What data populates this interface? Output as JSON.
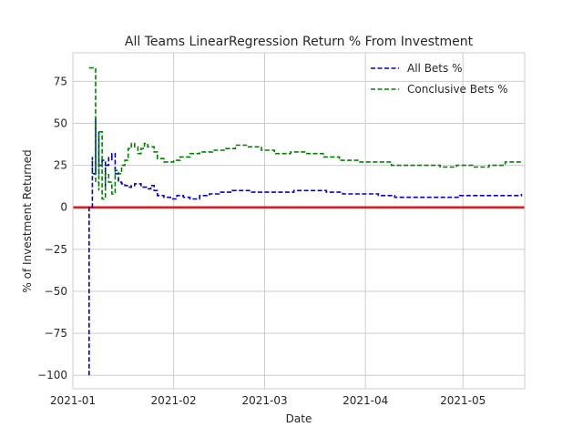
{
  "chart_data": {
    "type": "line",
    "title": "All Teams LinearRegression Return % From Investment",
    "xlabel": "Date",
    "ylabel": "% of Investment Returned",
    "xlim": [
      "2021-01-01",
      "2021-05-20"
    ],
    "ylim": [
      -108,
      92
    ],
    "x_ticks": [
      "2021-01",
      "2021-02",
      "2021-03",
      "2021-04",
      "2021-05"
    ],
    "y_ticks": [
      75,
      50,
      25,
      0,
      -25,
      -50,
      -75,
      -100
    ],
    "grid": true,
    "legend_position": "top-right",
    "reference_line": {
      "y": 0,
      "color": "#e31a1c"
    },
    "series": [
      {
        "name": "All Bets %",
        "color": "#0000cc",
        "style": "dashed",
        "points": [
          [
            "2021-01-06",
            -100
          ],
          [
            "2021-01-06",
            0
          ],
          [
            "2021-01-07",
            30
          ],
          [
            "2021-01-07",
            20
          ],
          [
            "2021-01-08",
            53
          ],
          [
            "2021-01-08",
            20
          ],
          [
            "2021-01-09",
            45
          ],
          [
            "2021-01-09",
            25
          ],
          [
            "2021-01-10",
            28
          ],
          [
            "2021-01-11",
            12
          ],
          [
            "2021-01-11",
            25
          ],
          [
            "2021-01-12",
            30
          ],
          [
            "2021-01-13",
            28
          ],
          [
            "2021-01-13",
            32
          ],
          [
            "2021-01-14",
            20
          ],
          [
            "2021-01-15",
            15
          ],
          [
            "2021-01-16",
            14
          ],
          [
            "2021-01-17",
            13
          ],
          [
            "2021-01-18",
            12
          ],
          [
            "2021-01-19",
            13
          ],
          [
            "2021-01-20",
            14
          ],
          [
            "2021-01-22",
            12
          ],
          [
            "2021-01-24",
            11
          ],
          [
            "2021-01-25",
            13
          ],
          [
            "2021-01-26",
            10
          ],
          [
            "2021-01-27",
            7
          ],
          [
            "2021-01-29",
            6
          ],
          [
            "2021-01-31",
            5
          ],
          [
            "2021-02-02",
            7
          ],
          [
            "2021-02-04",
            6
          ],
          [
            "2021-02-06",
            5
          ],
          [
            "2021-02-09",
            7
          ],
          [
            "2021-02-12",
            8
          ],
          [
            "2021-02-15",
            9
          ],
          [
            "2021-02-19",
            10
          ],
          [
            "2021-02-22",
            10
          ],
          [
            "2021-02-25",
            9
          ],
          [
            "2021-03-01",
            9
          ],
          [
            "2021-03-05",
            9
          ],
          [
            "2021-03-10",
            10
          ],
          [
            "2021-03-15",
            10
          ],
          [
            "2021-03-20",
            9
          ],
          [
            "2021-03-25",
            8
          ],
          [
            "2021-03-31",
            8
          ],
          [
            "2021-04-05",
            7
          ],
          [
            "2021-04-10",
            6
          ],
          [
            "2021-04-15",
            6
          ],
          [
            "2021-04-20",
            6
          ],
          [
            "2021-04-25",
            6
          ],
          [
            "2021-04-30",
            7
          ],
          [
            "2021-05-05",
            7
          ],
          [
            "2021-05-10",
            7
          ],
          [
            "2021-05-15",
            7
          ],
          [
            "2021-05-19",
            8
          ]
        ]
      },
      {
        "name": "Conclusive Bets %",
        "color": "#008000",
        "style": "dashed",
        "points": [
          [
            "2021-01-06",
            83
          ],
          [
            "2021-01-08",
            83
          ],
          [
            "2021-01-08",
            15
          ],
          [
            "2021-01-09",
            10
          ],
          [
            "2021-01-09",
            45
          ],
          [
            "2021-01-10",
            5
          ],
          [
            "2021-01-11",
            20
          ],
          [
            "2021-01-12",
            15
          ],
          [
            "2021-01-13",
            8
          ],
          [
            "2021-01-14",
            22
          ],
          [
            "2021-01-15",
            20
          ],
          [
            "2021-01-16",
            25
          ],
          [
            "2021-01-17",
            28
          ],
          [
            "2021-01-18",
            35
          ],
          [
            "2021-01-19",
            38
          ],
          [
            "2021-01-20",
            36
          ],
          [
            "2021-01-21",
            32
          ],
          [
            "2021-01-22",
            35
          ],
          [
            "2021-01-23",
            38
          ],
          [
            "2021-01-24",
            36
          ],
          [
            "2021-01-26",
            33
          ],
          [
            "2021-01-27",
            29
          ],
          [
            "2021-01-29",
            27
          ],
          [
            "2021-02-01",
            28
          ],
          [
            "2021-02-03",
            30
          ],
          [
            "2021-02-06",
            32
          ],
          [
            "2021-02-09",
            33
          ],
          [
            "2021-02-13",
            34
          ],
          [
            "2021-02-17",
            35
          ],
          [
            "2021-02-20",
            37
          ],
          [
            "2021-02-24",
            36
          ],
          [
            "2021-02-28",
            34
          ],
          [
            "2021-03-04",
            32
          ],
          [
            "2021-03-09",
            33
          ],
          [
            "2021-03-14",
            32
          ],
          [
            "2021-03-19",
            30
          ],
          [
            "2021-03-24",
            28
          ],
          [
            "2021-03-30",
            27
          ],
          [
            "2021-04-04",
            27
          ],
          [
            "2021-04-09",
            25
          ],
          [
            "2021-04-14",
            25
          ],
          [
            "2021-04-19",
            25
          ],
          [
            "2021-04-24",
            24
          ],
          [
            "2021-04-29",
            25
          ],
          [
            "2021-05-04",
            24
          ],
          [
            "2021-05-09",
            25
          ],
          [
            "2021-05-14",
            27
          ],
          [
            "2021-05-19",
            28
          ]
        ]
      }
    ]
  }
}
